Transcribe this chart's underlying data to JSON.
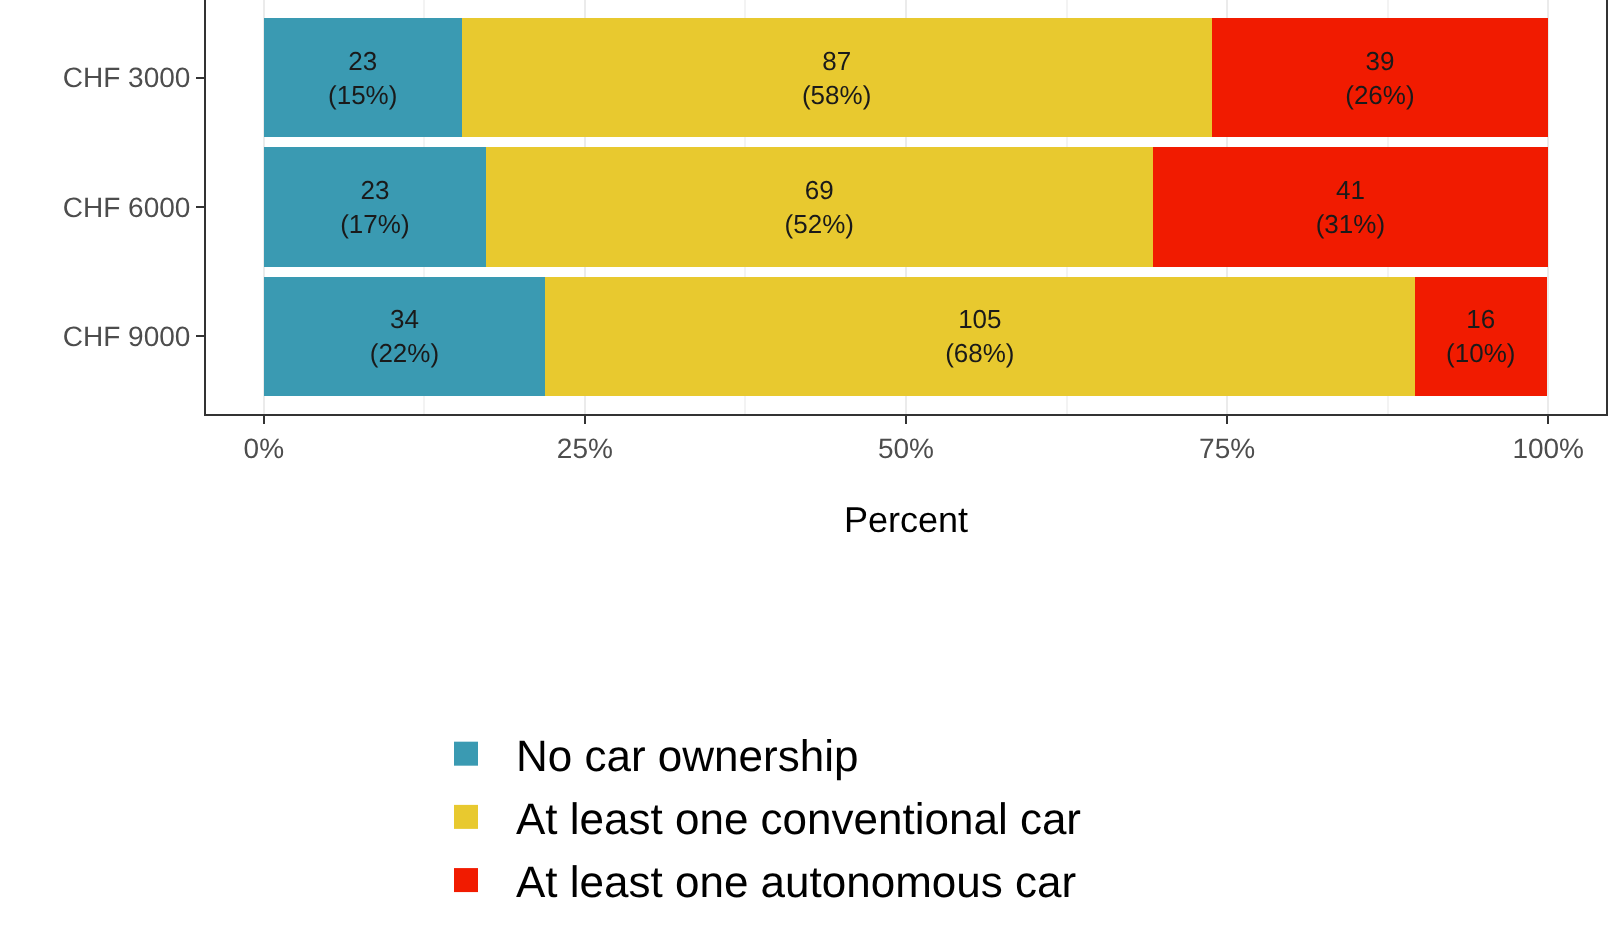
{
  "chart_data": {
    "type": "bar",
    "orientation": "horizontal",
    "stacked": true,
    "xlabel": "Percent",
    "categories": [
      "CHF 3000",
      "CHF 6000",
      "CHF 9000"
    ],
    "series": [
      {
        "name": "No car ownership",
        "color": "#3a9ab2",
        "values": [
          15.4,
          17.3,
          21.9
        ],
        "value_labels": [
          "23\n(15%)",
          "23\n(17%)",
          "34\n(22%)"
        ]
      },
      {
        "name": "At least one conventional car",
        "color": "#e8c92f",
        "values": [
          58.4,
          51.9,
          67.7
        ],
        "value_labels": [
          "87\n(58%)",
          "69\n(52%)",
          "105\n(68%)"
        ]
      },
      {
        "name": "At least one autonomous car",
        "color": "#f11b00",
        "values": [
          26.2,
          30.8,
          10.3
        ],
        "value_labels": [
          "39\n(26%)",
          "41\n(31%)",
          "16\n(10%)"
        ]
      }
    ],
    "xlim": [
      -4.5,
      104.5
    ],
    "xticks": [
      {
        "value": 0,
        "label": "0%"
      },
      {
        "value": 25,
        "label": "25%"
      },
      {
        "value": 50,
        "label": "50%"
      },
      {
        "value": 75,
        "label": "75%"
      },
      {
        "value": 100,
        "label": "100%"
      }
    ],
    "grid": "x",
    "legend": "bottom"
  }
}
